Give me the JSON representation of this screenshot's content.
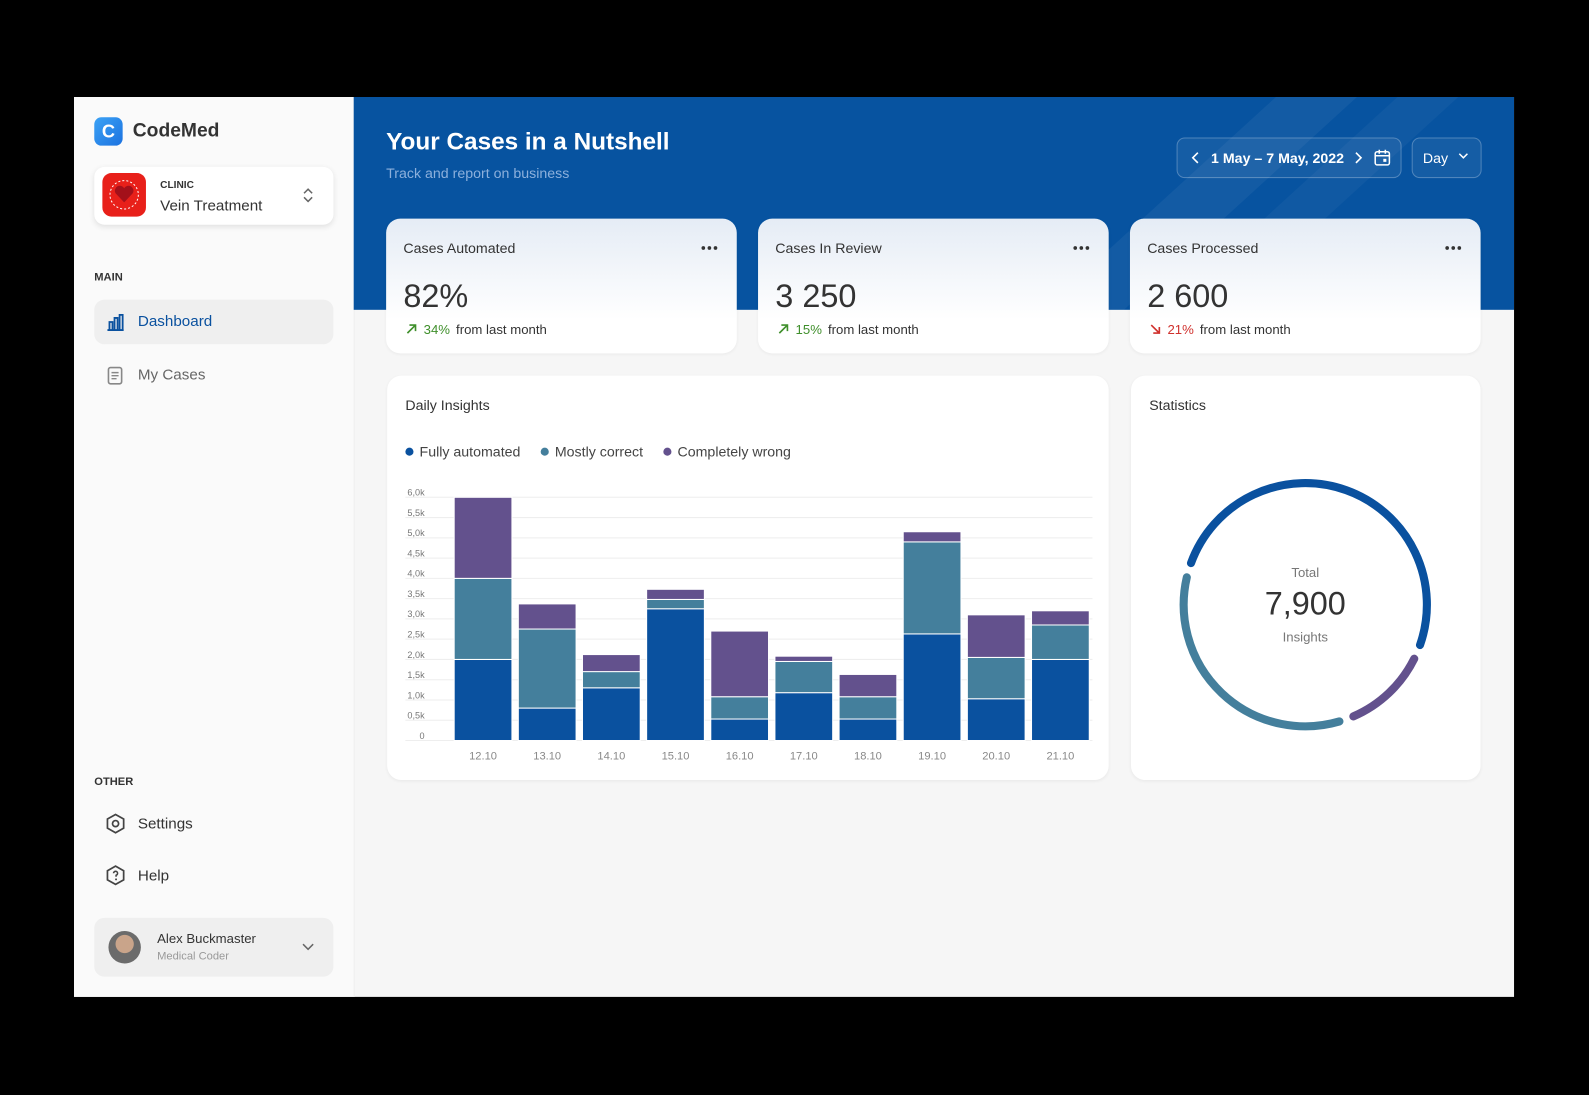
{
  "sidebar": {
    "brand": "CodeMed",
    "clinic": {
      "label": "CLINIC",
      "name": "Vein Treatment"
    },
    "main_label": "MAIN",
    "nav": [
      "Dashboard",
      "My Cases"
    ],
    "other_label": "OTHER",
    "other_nav": [
      "Settings",
      "Help"
    ],
    "user": {
      "name": "Alex Buckmaster",
      "role": "Medical Coder"
    }
  },
  "header": {
    "title": "Your Cases in a Nutshell",
    "subtitle": "Track and report on business",
    "date_range": "1 May – 7 May, 2022",
    "period": "Day"
  },
  "kpis": [
    {
      "title": "Cases Automated",
      "value": "82%",
      "change": "34%",
      "change_text": "from last month",
      "trend": "up"
    },
    {
      "title": "Cases In Review",
      "value": "3 250",
      "change": "15%",
      "change_text": "from last month",
      "trend": "up"
    },
    {
      "title": "Cases Processed",
      "value": "2 600",
      "change": "21%",
      "change_text": "from last month",
      "trend": "down"
    }
  ],
  "chart_data": {
    "type": "bar",
    "stacked": true,
    "title": "Daily Insights",
    "categories": [
      "12.10",
      "13.10",
      "14.10",
      "15.10",
      "16.10",
      "17.10",
      "18.10",
      "19.10",
      "20.10",
      "21.10"
    ],
    "series": [
      {
        "name": "Fully automated",
        "color": "#0a519f",
        "values": [
          2000,
          800,
          1300,
          3250,
          530,
          1180,
          530,
          2630,
          1030,
          2000
        ]
      },
      {
        "name": "Mostly correct",
        "color": "#447f9c",
        "values": [
          2000,
          1950,
          400,
          230,
          550,
          770,
          550,
          2270,
          1020,
          850
        ]
      },
      {
        "name": "Completely wrong",
        "color": "#63518d",
        "values": [
          2000,
          620,
          420,
          250,
          1620,
          130,
          550,
          250,
          1050,
          350
        ]
      }
    ],
    "ylim": [
      0,
      6000
    ],
    "yticks": [
      0,
      {
        "value": 500,
        "label": "0,5k"
      },
      {
        "value": 1000,
        "label": "1,0k"
      },
      {
        "value": 1500,
        "label": "1,5k"
      },
      {
        "value": 2000,
        "label": "2,0k"
      },
      {
        "value": 2500,
        "label": "2,5k"
      },
      {
        "value": 3000,
        "label": "3,0k"
      },
      {
        "value": 3500,
        "label": "3,5k"
      },
      {
        "value": 4000,
        "label": "4,0k"
      },
      {
        "value": 4500,
        "label": "4,5k"
      },
      {
        "value": 5000,
        "label": "5,0k"
      },
      {
        "value": 5500,
        "label": "5,5k"
      },
      {
        "value": 6000,
        "label": "6,0k"
      }
    ],
    "grid": true
  },
  "statistics": {
    "title": "Statistics",
    "total_label": "Total",
    "total": "7,900",
    "unit": "Insights",
    "values": [
      4180,
      2780,
      940
    ],
    "colors": [
      "#0a519f",
      "#447f9c",
      "#63518d"
    ]
  }
}
